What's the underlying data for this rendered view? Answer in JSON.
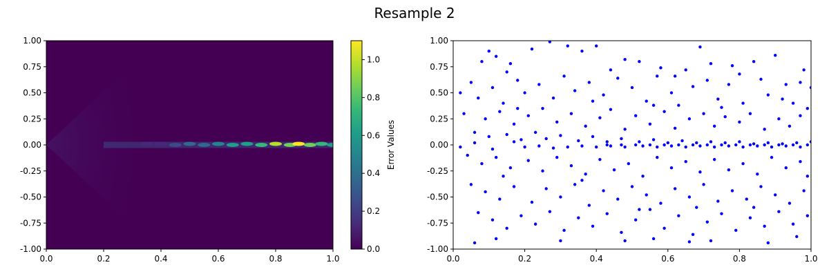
{
  "figure": {
    "title": "Resample 2"
  },
  "colormap": [
    "#440154",
    "#482878",
    "#3e4989",
    "#31688e",
    "#26828e",
    "#1f9e89",
    "#35b779",
    "#6ece58",
    "#b5de2b",
    "#fde725"
  ],
  "chart_data": [
    {
      "type": "heatmap",
      "title": "",
      "xlabel": "",
      "ylabel": "",
      "xlim": [
        0.0,
        1.0
      ],
      "ylim": [
        -1.0,
        1.0
      ],
      "x_ticks": [
        "0.0",
        "0.2",
        "0.4",
        "0.6",
        "0.8",
        "1.0"
      ],
      "y_ticks": [
        "1.00",
        "0.75",
        "0.50",
        "0.25",
        "0.00",
        "-0.25",
        "-0.50",
        "-0.75",
        "-1.00"
      ],
      "colorbar": {
        "label": "Error Values",
        "range": [
          0.0,
          1.1
        ],
        "ticks": [
          "0.0",
          "0.2",
          "0.4",
          "0.6",
          "0.8",
          "1.0"
        ]
      },
      "hotspots": [
        {
          "x": 0.35,
          "y": 0.01,
          "value": 0.12
        },
        {
          "x": 0.4,
          "y": 0.01,
          "value": 0.18
        },
        {
          "x": 0.45,
          "y": 0.0,
          "value": 0.25
        },
        {
          "x": 0.5,
          "y": 0.01,
          "value": 0.35
        },
        {
          "x": 0.55,
          "y": 0.0,
          "value": 0.4
        },
        {
          "x": 0.6,
          "y": 0.01,
          "value": 0.45
        },
        {
          "x": 0.65,
          "y": 0.0,
          "value": 0.55
        },
        {
          "x": 0.7,
          "y": 0.01,
          "value": 0.6
        },
        {
          "x": 0.75,
          "y": 0.0,
          "value": 0.75
        },
        {
          "x": 0.8,
          "y": 0.01,
          "value": 0.95
        },
        {
          "x": 0.85,
          "y": 0.0,
          "value": 0.9
        },
        {
          "x": 0.88,
          "y": 0.01,
          "value": 1.05
        },
        {
          "x": 0.92,
          "y": 0.0,
          "value": 0.8
        },
        {
          "x": 0.96,
          "y": 0.01,
          "value": 0.7
        },
        {
          "x": 1.0,
          "y": 0.0,
          "value": 0.65
        }
      ]
    },
    {
      "type": "scatter",
      "title": "",
      "xlabel": "",
      "ylabel": "",
      "xlim": [
        0.0,
        1.0
      ],
      "ylim": [
        -1.0,
        1.0
      ],
      "x_ticks": [
        "0.0",
        "0.2",
        "0.4",
        "0.6",
        "0.8",
        "1.0"
      ],
      "y_ticks": [
        "1.00",
        "0.75",
        "0.50",
        "0.25",
        "0.00",
        "-0.25",
        "-0.50",
        "-0.75",
        "-1.00"
      ],
      "point_color": "#0000ff",
      "points": [
        [
          0.27,
          0.99
        ],
        [
          0.32,
          0.95
        ],
        [
          0.69,
          0.94
        ],
        [
          0.08,
          0.8
        ],
        [
          0.1,
          0.9
        ],
        [
          0.12,
          0.85
        ],
        [
          0.16,
          0.78
        ],
        [
          0.22,
          0.92
        ],
        [
          0.36,
          0.9
        ],
        [
          0.4,
          0.95
        ],
        [
          0.48,
          0.82
        ],
        [
          0.52,
          0.8
        ],
        [
          0.58,
          0.74
        ],
        [
          0.65,
          0.72
        ],
        [
          0.72,
          0.78
        ],
        [
          0.78,
          0.76
        ],
        [
          0.84,
          0.8
        ],
        [
          0.9,
          0.86
        ],
        [
          0.98,
          0.72
        ],
        [
          1.0,
          0.55
        ],
        [
          0.05,
          0.6
        ],
        [
          0.07,
          0.45
        ],
        [
          0.11,
          0.55
        ],
        [
          0.14,
          0.4
        ],
        [
          0.18,
          0.62
        ],
        [
          0.2,
          0.5
        ],
        [
          0.24,
          0.58
        ],
        [
          0.28,
          0.45
        ],
        [
          0.31,
          0.66
        ],
        [
          0.34,
          0.52
        ],
        [
          0.38,
          0.6
        ],
        [
          0.42,
          0.48
        ],
        [
          0.46,
          0.64
        ],
        [
          0.5,
          0.55
        ],
        [
          0.54,
          0.42
        ],
        [
          0.57,
          0.66
        ],
        [
          0.61,
          0.5
        ],
        [
          0.63,
          0.38
        ],
        [
          0.67,
          0.56
        ],
        [
          0.71,
          0.62
        ],
        [
          0.74,
          0.44
        ],
        [
          0.77,
          0.58
        ],
        [
          0.81,
          0.4
        ],
        [
          0.86,
          0.63
        ],
        [
          0.88,
          0.48
        ],
        [
          0.93,
          0.58
        ],
        [
          0.95,
          0.4
        ],
        [
          0.99,
          0.35
        ],
        [
          0.03,
          0.3
        ],
        [
          0.09,
          0.25
        ],
        [
          0.13,
          0.32
        ],
        [
          0.17,
          0.2
        ],
        [
          0.21,
          0.28
        ],
        [
          0.25,
          0.35
        ],
        [
          0.29,
          0.22
        ],
        [
          0.33,
          0.3
        ],
        [
          0.37,
          0.18
        ],
        [
          0.41,
          0.26
        ],
        [
          0.44,
          0.34
        ],
        [
          0.48,
          0.15
        ],
        [
          0.51,
          0.28
        ],
        [
          0.55,
          0.2
        ],
        [
          0.59,
          0.32
        ],
        [
          0.62,
          0.16
        ],
        [
          0.66,
          0.25
        ],
        [
          0.7,
          0.3
        ],
        [
          0.73,
          0.18
        ],
        [
          0.76,
          0.27
        ],
        [
          0.8,
          0.22
        ],
        [
          0.83,
          0.3
        ],
        [
          0.87,
          0.15
        ],
        [
          0.91,
          0.25
        ],
        [
          0.94,
          0.18
        ],
        [
          0.97,
          0.28
        ],
        [
          0.06,
          0.12
        ],
        [
          0.1,
          0.08
        ],
        [
          0.15,
          0.1
        ],
        [
          0.19,
          0.05
        ],
        [
          0.23,
          0.12
        ],
        [
          0.26,
          0.06
        ],
        [
          0.3,
          0.09
        ],
        [
          0.35,
          0.04
        ],
        [
          0.39,
          0.08
        ],
        [
          0.43,
          0.03
        ],
        [
          0.47,
          0.06
        ],
        [
          0.52,
          0.03
        ],
        [
          0.56,
          0.05
        ],
        [
          0.6,
          0.02
        ],
        [
          0.64,
          0.04
        ],
        [
          0.68,
          0.02
        ],
        [
          0.72,
          0.03
        ],
        [
          0.76,
          0.02
        ],
        [
          0.8,
          0.03
        ],
        [
          0.84,
          0.01
        ],
        [
          0.88,
          0.02
        ],
        [
          0.92,
          0.01
        ],
        [
          0.96,
          0.02
        ],
        [
          1.0,
          0.03
        ],
        [
          0.2,
          -0.02
        ],
        [
          0.24,
          -0.01
        ],
        [
          0.28,
          -0.03
        ],
        [
          0.32,
          -0.02
        ],
        [
          0.36,
          -0.01
        ],
        [
          0.4,
          -0.02
        ],
        [
          0.44,
          -0.01
        ],
        [
          0.48,
          -0.02
        ],
        [
          0.53,
          -0.01
        ],
        [
          0.57,
          -0.02
        ],
        [
          0.61,
          -0.01
        ],
        [
          0.65,
          -0.02
        ],
        [
          0.69,
          -0.01
        ],
        [
          0.73,
          -0.02
        ],
        [
          0.77,
          -0.01
        ],
        [
          0.81,
          -0.02
        ],
        [
          0.85,
          -0.01
        ],
        [
          0.89,
          -0.02
        ],
        [
          0.93,
          -0.01
        ],
        [
          0.97,
          -0.02
        ],
        [
          0.99,
          0.0
        ],
        [
          0.95,
          0.0
        ],
        [
          0.91,
          0.0
        ],
        [
          0.87,
          0.0
        ],
        [
          0.83,
          0.0
        ],
        [
          0.79,
          0.0
        ],
        [
          0.75,
          0.0
        ],
        [
          0.71,
          0.0
        ],
        [
          0.67,
          0.0
        ],
        [
          0.63,
          0.0
        ],
        [
          0.59,
          0.0
        ],
        [
          0.55,
          0.0
        ],
        [
          0.51,
          0.0
        ],
        [
          0.47,
          0.0
        ],
        [
          0.43,
          0.0
        ],
        [
          0.04,
          -0.1
        ],
        [
          0.08,
          -0.18
        ],
        [
          0.12,
          -0.12
        ],
        [
          0.16,
          -0.22
        ],
        [
          0.21,
          -0.15
        ],
        [
          0.25,
          -0.25
        ],
        [
          0.29,
          -0.12
        ],
        [
          0.33,
          -0.2
        ],
        [
          0.37,
          -0.28
        ],
        [
          0.41,
          -0.14
        ],
        [
          0.45,
          -0.24
        ],
        [
          0.49,
          -0.18
        ],
        [
          0.53,
          -0.3
        ],
        [
          0.57,
          -0.12
        ],
        [
          0.61,
          -0.22
        ],
        [
          0.65,
          -0.16
        ],
        [
          0.69,
          -0.26
        ],
        [
          0.73,
          -0.14
        ],
        [
          0.77,
          -0.24
        ],
        [
          0.81,
          -0.18
        ],
        [
          0.85,
          -0.28
        ],
        [
          0.89,
          -0.12
        ],
        [
          0.93,
          -0.22
        ],
        [
          0.97,
          -0.16
        ],
        [
          0.05,
          -0.38
        ],
        [
          0.09,
          -0.45
        ],
        [
          0.13,
          -0.52
        ],
        [
          0.17,
          -0.4
        ],
        [
          0.22,
          -0.55
        ],
        [
          0.26,
          -0.42
        ],
        [
          0.3,
          -0.5
        ],
        [
          0.34,
          -0.38
        ],
        [
          0.38,
          -0.58
        ],
        [
          0.42,
          -0.44
        ],
        [
          0.46,
          -0.52
        ],
        [
          0.5,
          -0.4
        ],
        [
          0.54,
          -0.48
        ],
        [
          0.58,
          -0.56
        ],
        [
          0.62,
          -0.42
        ],
        [
          0.66,
          -0.5
        ],
        [
          0.7,
          -0.38
        ],
        [
          0.74,
          -0.54
        ],
        [
          0.78,
          -0.44
        ],
        [
          0.82,
          -0.52
        ],
        [
          0.86,
          -0.4
        ],
        [
          0.9,
          -0.48
        ],
        [
          0.94,
          -0.56
        ],
        [
          0.98,
          -0.44
        ],
        [
          0.07,
          -0.65
        ],
        [
          0.11,
          -0.72
        ],
        [
          0.15,
          -0.8
        ],
        [
          0.19,
          -0.68
        ],
        [
          0.23,
          -0.76
        ],
        [
          0.27,
          -0.64
        ],
        [
          0.31,
          -0.82
        ],
        [
          0.35,
          -0.7
        ],
        [
          0.39,
          -0.78
        ],
        [
          0.43,
          -0.66
        ],
        [
          0.47,
          -0.84
        ],
        [
          0.51,
          -0.72
        ],
        [
          0.55,
          -0.62
        ],
        [
          0.59,
          -0.8
        ],
        [
          0.63,
          -0.68
        ],
        [
          0.67,
          -0.86
        ],
        [
          0.71,
          -0.74
        ],
        [
          0.75,
          -0.66
        ],
        [
          0.79,
          -0.82
        ],
        [
          0.83,
          -0.7
        ],
        [
          0.87,
          -0.78
        ],
        [
          0.91,
          -0.64
        ],
        [
          0.95,
          -0.76
        ],
        [
          0.99,
          -0.68
        ],
        [
          0.06,
          -0.94
        ],
        [
          0.12,
          -0.9
        ],
        [
          0.3,
          -0.92
        ],
        [
          0.48,
          -0.92
        ],
        [
          0.56,
          -0.9
        ],
        [
          0.66,
          -0.93
        ],
        [
          0.72,
          -0.92
        ],
        [
          0.88,
          -0.94
        ],
        [
          0.96,
          -0.88
        ],
        [
          0.02,
          0.5
        ],
        [
          0.15,
          0.7
        ],
        [
          0.44,
          0.72
        ],
        [
          0.62,
          0.66
        ],
        [
          0.8,
          0.68
        ],
        [
          0.97,
          0.6
        ],
        [
          0.18,
          0.35
        ],
        [
          0.39,
          0.42
        ],
        [
          0.56,
          0.38
        ],
        [
          0.75,
          0.36
        ],
        [
          0.92,
          0.44
        ],
        [
          0.14,
          -0.3
        ],
        [
          0.36,
          -0.34
        ],
        [
          0.52,
          -0.62
        ],
        [
          0.68,
          -0.6
        ],
        [
          0.84,
          -0.6
        ],
        [
          0.02,
          -0.02
        ],
        [
          0.06,
          0.02
        ],
        [
          0.11,
          -0.04
        ],
        [
          0.17,
          0.03
        ],
        [
          0.99,
          -0.3
        ]
      ]
    }
  ]
}
